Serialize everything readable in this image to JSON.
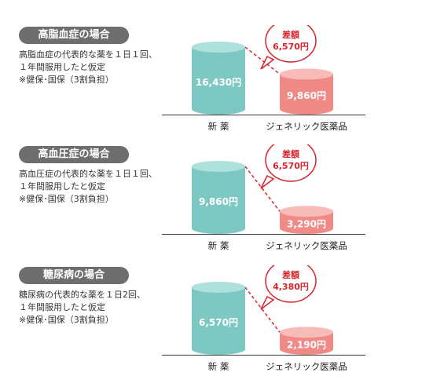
{
  "colors": {
    "pill_bg": "#6e6e6e",
    "new_drug": "#7ec8c4",
    "new_drug_top": "#aee0dc",
    "generic": "#f08a86",
    "generic_top": "#f8bcb8",
    "diff_accent": "#d9232d",
    "baseline": "#333333"
  },
  "sections": [
    {
      "title": "高脂血症の場合",
      "desc_lines": [
        "高脂血症の代表的な薬を１日１回、",
        "１年間服用したと仮定",
        "※健保･国保（3割負担）"
      ],
      "diff_label": "差額",
      "diff_value": "6,570円"
    },
    {
      "title": "高血圧症の場合",
      "desc_lines": [
        "高血圧症の代表的な薬を１日１回、",
        "１年間服用したと仮定",
        "※健保･国保（3割負担）"
      ],
      "diff_label": "差額",
      "diff_value": "6,570円"
    },
    {
      "title": "糖尿病の場合",
      "desc_lines": [
        "糖尿病の代表的な薬を１日2回、",
        "１年間服用したと仮定",
        "※健保･国保（3割負担）"
      ],
      "diff_label": "差額",
      "diff_value": "4,380円"
    }
  ],
  "chart_data": [
    {
      "type": "bar",
      "categories": [
        "新 薬",
        "ジェネリック医薬品"
      ],
      "values": [
        16430,
        9860
      ],
      "value_labels": [
        "16,430円",
        "9,860円"
      ],
      "ylim": [
        0,
        16430
      ]
    },
    {
      "type": "bar",
      "categories": [
        "新 薬",
        "ジェネリック医薬品"
      ],
      "values": [
        9860,
        3290
      ],
      "value_labels": [
        "9,860円",
        "3,290円"
      ],
      "ylim": [
        0,
        9860
      ]
    },
    {
      "type": "bar",
      "categories": [
        "新 薬",
        "ジェネリック医薬品"
      ],
      "values": [
        6570,
        2190
      ],
      "value_labels": [
        "6,570円",
        "2,190円"
      ],
      "ylim": [
        0,
        6570
      ]
    }
  ]
}
